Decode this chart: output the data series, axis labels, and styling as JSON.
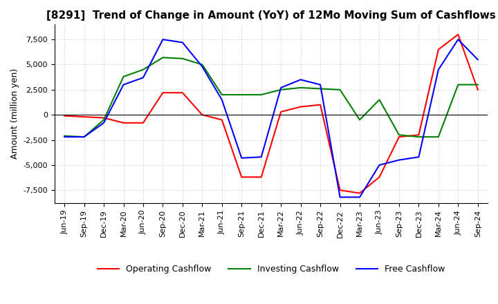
{
  "title": "[8291]  Trend of Change in Amount (YoY) of 12Mo Moving Sum of Cashflows",
  "ylabel": "Amount (million yen)",
  "ylim": [
    -8800,
    9000
  ],
  "yticks": [
    -7500,
    -5000,
    -2500,
    0,
    2500,
    5000,
    7500
  ],
  "x_labels": [
    "Jun-19",
    "Sep-19",
    "Dec-19",
    "Mar-20",
    "Jun-20",
    "Sep-20",
    "Dec-20",
    "Mar-21",
    "Jun-21",
    "Sep-21",
    "Dec-21",
    "Mar-22",
    "Jun-22",
    "Sep-22",
    "Dec-22",
    "Mar-23",
    "Jun-23",
    "Sep-23",
    "Dec-23",
    "Mar-24",
    "Jun-24",
    "Sep-24"
  ],
  "operating": [
    -100,
    -200,
    -300,
    -800,
    -800,
    2200,
    2200,
    0,
    -500,
    -6200,
    -6200,
    300,
    800,
    1000,
    -7500,
    -7800,
    -6200,
    -2200,
    -2000,
    6500,
    8000,
    2500
  ],
  "investing": [
    -2100,
    -2200,
    -500,
    3800,
    4500,
    5700,
    5600,
    5000,
    2000,
    2000,
    2000,
    2500,
    2700,
    2600,
    2500,
    -500,
    1500,
    -2000,
    -2200,
    -2200,
    3000,
    3000
  ],
  "free": [
    -2200,
    -2200,
    -800,
    3000,
    3700,
    7500,
    7200,
    4800,
    1500,
    -4300,
    -4200,
    2700,
    3500,
    3000,
    -8200,
    -8200,
    -5000,
    -4500,
    -4200,
    4500,
    7500,
    5500
  ],
  "operating_color": "#ff0000",
  "investing_color": "#008000",
  "free_color": "#0000ff",
  "bg_color": "#ffffff",
  "grid_color": "#b0b0b0"
}
